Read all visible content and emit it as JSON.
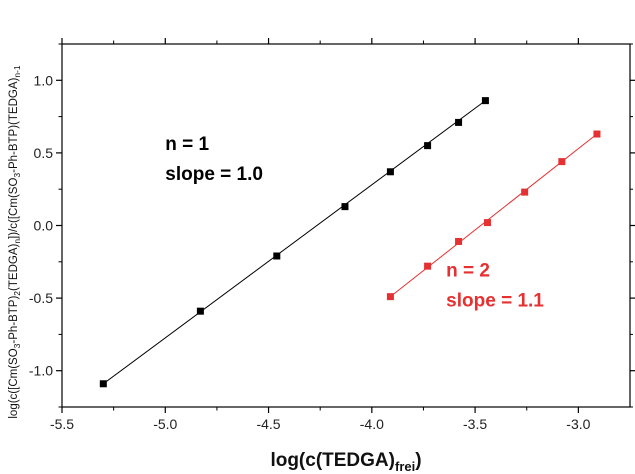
{
  "chart_data": {
    "type": "scatter",
    "xlabel": {
      "main": "log(c(TEDGA)",
      "sub": "frei",
      "tail": ")"
    },
    "ylabel": {
      "parts": [
        [
          "log(c([Cm(SO",
          ""
        ],
        [
          "3",
          "sub"
        ],
        [
          "-Ph-BTP)",
          ""
        ],
        [
          "2",
          "sub"
        ],
        [
          "(TEDGA)",
          ""
        ],
        [
          "n",
          "sub"
        ],
        [
          "])/c([Cm(SO",
          ""
        ],
        [
          "3",
          "sub"
        ],
        [
          "-Ph-BTP)(TEDGA)",
          ""
        ],
        [
          "n-1",
          "sub"
        ]
      ]
    },
    "xlim": [
      -5.5,
      -2.75
    ],
    "ylim": [
      -1.25,
      1.25
    ],
    "xticks": [
      -5.5,
      -5.0,
      -4.5,
      -4.0,
      -3.5,
      -3.0
    ],
    "xtick_labels": [
      "-5.5",
      "-5.0",
      "-4.5",
      "-4.0",
      "-3.5",
      "-3.0"
    ],
    "yticks": [
      -1.0,
      -0.5,
      0.0,
      0.5,
      1.0
    ],
    "ytick_labels": [
      "-1.0",
      "-0.5",
      "0.0",
      "0.5",
      "1.0"
    ],
    "grid": false,
    "series": [
      {
        "color": "#000000",
        "x": [
          -5.3,
          -4.83,
          -4.46,
          -4.13,
          -3.91,
          -3.73,
          -3.58,
          -3.45
        ],
        "y": [
          -1.09,
          -0.59,
          -0.21,
          0.13,
          0.37,
          0.55,
          0.71,
          0.86
        ],
        "fit": [
          [
            -5.3,
            -1.09
          ],
          [
            -3.45,
            0.86
          ]
        ]
      },
      {
        "color": "#e53131",
        "x": [
          -3.91,
          -3.73,
          -3.58,
          -3.44,
          -3.26,
          -3.08,
          -2.91
        ],
        "y": [
          -0.49,
          -0.28,
          -0.11,
          0.02,
          0.23,
          0.44,
          0.63
        ],
        "fit": [
          [
            -3.91,
            -0.49
          ],
          [
            -2.91,
            0.63
          ]
        ]
      }
    ],
    "annotations": [
      {
        "lines": [
          "n = 1",
          "slope = 1.0"
        ],
        "color": "#000000",
        "at": [
          -5.0,
          0.52
        ]
      },
      {
        "lines": [
          "n = 2",
          "slope = 1.1"
        ],
        "color": "#e53131",
        "at": [
          -3.64,
          -0.35
        ]
      }
    ]
  }
}
